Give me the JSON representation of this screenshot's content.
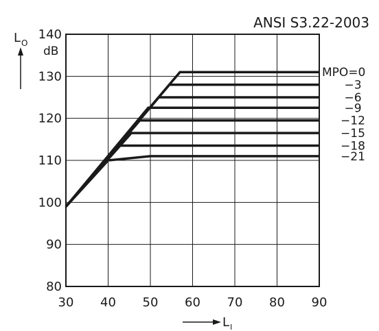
{
  "chart_data": {
    "type": "line",
    "title": "ANSI S3.22-2003",
    "ylabel_main": "L",
    "ylabel_sub": "O",
    "yunit": "dB",
    "xlabel_main": "L",
    "xlabel_sub": "I",
    "xlim": [
      30,
      90
    ],
    "ylim": [
      80,
      140
    ],
    "xticks": [
      30,
      40,
      50,
      60,
      70,
      80,
      90
    ],
    "yticks": [
      80,
      90,
      100,
      110,
      120,
      130,
      140
    ],
    "grid": true,
    "series": [
      {
        "name": "MPO=0",
        "x": [
          30,
          57,
          90
        ],
        "y": [
          99,
          131,
          131
        ]
      },
      {
        "name": "−3",
        "x": [
          30,
          54.5,
          90
        ],
        "y": [
          99,
          128,
          128
        ]
      },
      {
        "name": "−6",
        "x": [
          30,
          52,
          90
        ],
        "y": [
          99,
          125,
          125
        ]
      },
      {
        "name": "−9",
        "x": [
          30,
          49.5,
          90
        ],
        "y": [
          99,
          122.5,
          122.5
        ]
      },
      {
        "name": "−12",
        "x": [
          30,
          47.5,
          90
        ],
        "y": [
          99,
          119.5,
          119.5
        ]
      },
      {
        "name": "−15",
        "x": [
          30,
          45.5,
          90
        ],
        "y": [
          99,
          116.5,
          116.5
        ]
      },
      {
        "name": "−18",
        "x": [
          30,
          42.5,
          90
        ],
        "y": [
          99,
          113.5,
          113.5
        ]
      },
      {
        "name": "−21",
        "x": [
          30,
          40,
          50,
          90
        ],
        "y": [
          99,
          110,
          111,
          111
        ]
      }
    ]
  }
}
